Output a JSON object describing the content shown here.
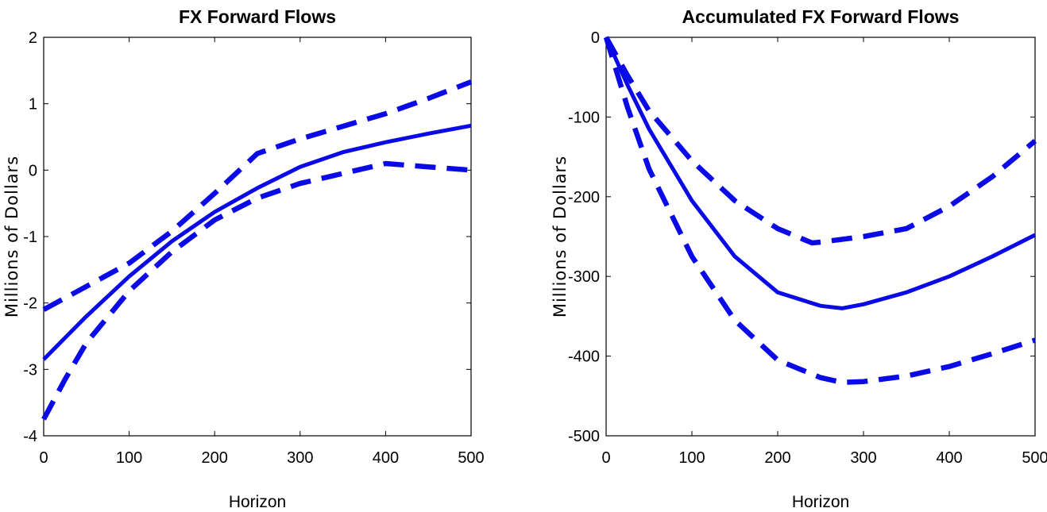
{
  "colors": {
    "series": "#0a0ae6",
    "axis": "#000000"
  },
  "chart_data": [
    {
      "type": "line",
      "title": "FX Forward Flows",
      "xlabel": "Horizon",
      "ylabel": "Millions of Dollars",
      "xlim": [
        0,
        500
      ],
      "ylim": [
        -4,
        2
      ],
      "xticks": [
        0,
        100,
        200,
        300,
        400,
        500
      ],
      "yticks": [
        -4,
        -3,
        -2,
        -1,
        0,
        1,
        2
      ],
      "grid": false,
      "series": [
        {
          "style": "solid",
          "x": [
            0,
            50,
            100,
            150,
            200,
            250,
            300,
            350,
            400,
            450,
            500
          ],
          "values": [
            -2.85,
            -2.2,
            -1.6,
            -1.07,
            -0.63,
            -0.27,
            0.05,
            0.27,
            0.42,
            0.55,
            0.67
          ]
        },
        {
          "style": "dashed",
          "x": [
            0,
            50,
            100,
            150,
            200,
            250,
            300,
            350,
            400,
            450,
            500
          ],
          "values": [
            -2.1,
            -1.75,
            -1.4,
            -0.92,
            -0.35,
            0.25,
            0.47,
            0.66,
            0.85,
            1.08,
            1.33
          ]
        },
        {
          "style": "dashed",
          "x": [
            0,
            25,
            50,
            100,
            150,
            200,
            250,
            300,
            350,
            400,
            450,
            500
          ],
          "values": [
            -3.75,
            -3.15,
            -2.6,
            -1.82,
            -1.23,
            -0.75,
            -0.42,
            -0.2,
            -0.05,
            0.1,
            0.05,
            0.0
          ]
        }
      ]
    },
    {
      "type": "line",
      "title": "Accumulated FX Forward Flows",
      "xlabel": "Horizon",
      "ylabel": "Millions of Dollars",
      "xlim": [
        0,
        500
      ],
      "ylim": [
        -500,
        0
      ],
      "xticks": [
        0,
        100,
        200,
        300,
        400,
        500
      ],
      "yticks": [
        -500,
        -400,
        -300,
        -200,
        -100,
        0
      ],
      "grid": false,
      "series": [
        {
          "style": "solid",
          "x": [
            0,
            25,
            50,
            100,
            150,
            200,
            250,
            275,
            300,
            350,
            400,
            450,
            500
          ],
          "values": [
            0,
            -60,
            -115,
            -205,
            -275,
            -320,
            -337,
            -340,
            -335,
            -320,
            -300,
            -275,
            -248
          ]
        },
        {
          "style": "dashed",
          "x": [
            0,
            25,
            50,
            100,
            150,
            200,
            240,
            250,
            300,
            350,
            400,
            450,
            500
          ],
          "values": [
            0,
            -48,
            -92,
            -155,
            -205,
            -240,
            -258,
            -257,
            -250,
            -240,
            -212,
            -175,
            -130
          ]
        },
        {
          "style": "dashed",
          "x": [
            0,
            25,
            50,
            100,
            150,
            200,
            250,
            275,
            300,
            350,
            400,
            450,
            500
          ],
          "values": [
            0,
            -88,
            -165,
            -275,
            -355,
            -405,
            -427,
            -433,
            -432,
            -425,
            -413,
            -397,
            -380
          ]
        }
      ]
    }
  ]
}
